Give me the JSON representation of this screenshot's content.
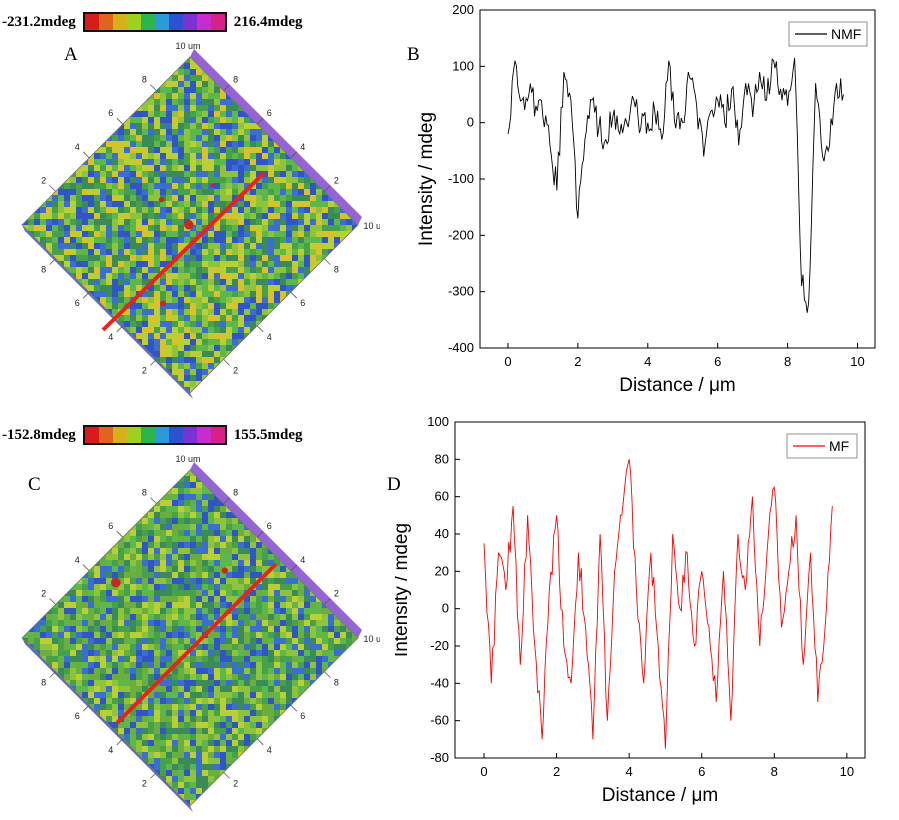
{
  "panels": {
    "A": {
      "letter": "A",
      "colorbar": {
        "min_label": "-231.2mdeg",
        "max_label": "216.4mdeg"
      },
      "axis_unit_label": "10 um",
      "ticks_left": [
        "2",
        "4",
        "6",
        "8"
      ],
      "ticks_right": [
        "2",
        "4",
        "6",
        "8"
      ],
      "ticks_bottom_left": [
        "8",
        "6",
        "4",
        "2"
      ],
      "ticks_bottom_right": [
        "2",
        "4",
        "6",
        "8"
      ],
      "line_color": "#e8241a"
    },
    "C": {
      "letter": "C",
      "colorbar": {
        "min_label": "-152.8mdeg",
        "max_label": "155.5mdeg"
      },
      "axis_unit_label": "10 um",
      "ticks_left": [
        "2",
        "4",
        "6",
        "8"
      ],
      "ticks_right": [
        "2",
        "4",
        "6",
        "8"
      ],
      "ticks_bottom_left": [
        "8",
        "6",
        "4",
        "2"
      ],
      "ticks_bottom_right": [
        "2",
        "4",
        "6",
        "8"
      ],
      "line_color": "#e8241a"
    },
    "B": {
      "letter": "B"
    },
    "D": {
      "letter": "D"
    }
  },
  "colorbar_colors": [
    "#d81c1c",
    "#e0641e",
    "#d6b21a",
    "#9fd21e",
    "#2bb54a",
    "#2a9ad8",
    "#2c52d2",
    "#7a32d2",
    "#c82ccc",
    "#d8208a"
  ],
  "chart_data": [
    {
      "type": "line",
      "panel": "B",
      "xlabel": "Distance / μm",
      "ylabel": "Intensity / mdeg",
      "xlim": [
        -0.8,
        10.5
      ],
      "ylim": [
        -400,
        200
      ],
      "xticks": [
        0,
        2,
        4,
        6,
        8,
        10
      ],
      "yticks": [
        -400,
        -300,
        -200,
        -100,
        0,
        100,
        200
      ],
      "legend_position": "top-right",
      "series": [
        {
          "name": "NMF",
          "color": "#000000",
          "x": [
            0,
            0.2,
            0.4,
            0.6,
            0.8,
            1.0,
            1.2,
            1.4,
            1.6,
            1.8,
            2.0,
            2.2,
            2.4,
            2.6,
            2.8,
            3.0,
            3.2,
            3.4,
            3.6,
            3.8,
            4.0,
            4.2,
            4.4,
            4.6,
            4.8,
            5.0,
            5.2,
            5.4,
            5.6,
            5.8,
            6.0,
            6.2,
            6.4,
            6.6,
            6.8,
            7.0,
            7.2,
            7.4,
            7.6,
            7.8,
            8.0,
            8.2,
            8.4,
            8.6,
            8.8,
            9.0,
            9.2,
            9.4,
            9.6
          ],
          "y": [
            -20,
            110,
            40,
            50,
            30,
            10,
            -40,
            -120,
            90,
            40,
            -170,
            -30,
            40,
            -10,
            -30,
            10,
            -20,
            0,
            40,
            -10,
            0,
            20,
            -30,
            110,
            -10,
            0,
            80,
            30,
            -60,
            20,
            40,
            0,
            60,
            -40,
            70,
            10,
            90,
            40,
            110,
            60,
            30,
            115,
            -290,
            -320,
            70,
            -60,
            -40,
            70,
            50
          ]
        }
      ]
    },
    {
      "type": "line",
      "panel": "D",
      "xlabel": "Distance / μm",
      "ylabel": "Intensity / mdeg",
      "xlim": [
        -0.8,
        10.5
      ],
      "ylim": [
        -80,
        100
      ],
      "xticks": [
        0,
        2,
        4,
        6,
        8,
        10
      ],
      "yticks": [
        -80,
        -60,
        -40,
        -20,
        0,
        20,
        40,
        60,
        80,
        100
      ],
      "legend_position": "top-right",
      "series": [
        {
          "name": "MF",
          "color": "#ff0000",
          "x": [
            0,
            0.2,
            0.4,
            0.6,
            0.8,
            1.0,
            1.2,
            1.4,
            1.6,
            1.8,
            2.0,
            2.2,
            2.4,
            2.6,
            2.8,
            3.0,
            3.2,
            3.4,
            3.6,
            3.8,
            4.0,
            4.2,
            4.4,
            4.6,
            4.8,
            5.0,
            5.2,
            5.4,
            5.6,
            5.8,
            6.0,
            6.2,
            6.4,
            6.6,
            6.8,
            7.0,
            7.2,
            7.4,
            7.6,
            7.8,
            8.0,
            8.2,
            8.4,
            8.6,
            8.8,
            9.0,
            9.2,
            9.4,
            9.6
          ],
          "y": [
            35,
            -40,
            30,
            10,
            55,
            -30,
            50,
            -20,
            -70,
            10,
            50,
            -20,
            -40,
            30,
            -10,
            -70,
            40,
            -60,
            20,
            50,
            80,
            10,
            -40,
            30,
            -20,
            -75,
            40,
            0,
            30,
            -20,
            20,
            -10,
            -50,
            20,
            -60,
            40,
            10,
            60,
            -20,
            30,
            65,
            -10,
            20,
            50,
            -30,
            30,
            -50,
            -10,
            55
          ]
        }
      ]
    }
  ]
}
